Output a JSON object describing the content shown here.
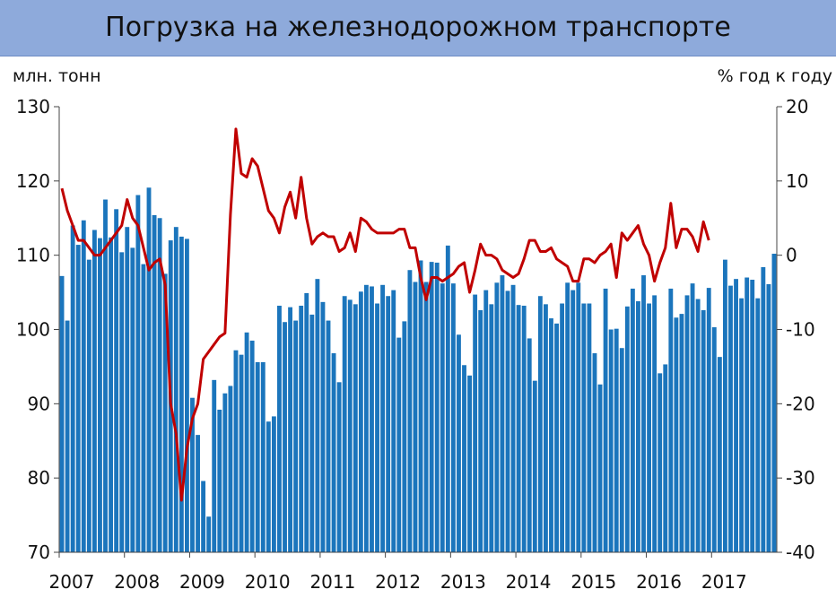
{
  "header": {
    "title": "Погрузка на железнодорожном транспорте"
  },
  "axes": {
    "left_unit": "млн. тонн",
    "right_unit": "% год к году"
  },
  "chart_data": {
    "type": "bar",
    "title": "Погрузка на железнодорожном транспорте",
    "ylabel": "млн. тонн",
    "y2label": "% год к году",
    "ylim": [
      70,
      130
    ],
    "y2lim": [
      -40,
      20
    ],
    "yticks": [
      70,
      80,
      90,
      100,
      110,
      120,
      130
    ],
    "y2ticks": [
      -40,
      -30,
      -20,
      -10,
      0,
      10,
      20
    ],
    "x_start": "2007-01",
    "x_labels": [
      "2007",
      "2008",
      "2009",
      "2010",
      "2011",
      "2012",
      "2013",
      "2014",
      "2015",
      "2016",
      "2017"
    ],
    "grid": false,
    "colors": {
      "bars": "#1b75bc",
      "line": "#c00000",
      "header_bg": "#8eaadb"
    },
    "series": [
      {
        "type": "bar",
        "axis": "left",
        "values": [
          107.2,
          101.2,
          114.0,
          111.4,
          114.7,
          109.4,
          113.4,
          112.3,
          117.5,
          112.4,
          116.2,
          110.4,
          113.8,
          111.0,
          118.1,
          108.8,
          119.1,
          115.4,
          115.0,
          107.5,
          112.0,
          113.8,
          112.5,
          112.2,
          90.8,
          85.8,
          79.6,
          74.8,
          93.2,
          89.2,
          91.4,
          92.4,
          97.2,
          96.6,
          99.6,
          98.5,
          95.6,
          95.6,
          87.6,
          88.3,
          103.2,
          101.0,
          103.0,
          101.2,
          103.2,
          104.9,
          102.0,
          106.8,
          103.7,
          101.2,
          96.8,
          92.9,
          104.5,
          104.0,
          103.4,
          105.1,
          106.0,
          105.8,
          103.5,
          106.0,
          104.5,
          105.3,
          98.9,
          101.1,
          108.0,
          106.4,
          109.3,
          106.4,
          109.1,
          109.0,
          106.2,
          111.3,
          106.2,
          99.3,
          95.2,
          93.8,
          104.7,
          102.6,
          105.3,
          103.4,
          106.3,
          107.3,
          105.2,
          106.0,
          103.3,
          103.2,
          98.8,
          93.1,
          104.5,
          103.4,
          101.5,
          100.8,
          103.5,
          106.3,
          105.3,
          106.3,
          103.5,
          103.5,
          96.8,
          92.6,
          105.5,
          100.0,
          100.1,
          97.5,
          103.1,
          105.5,
          103.8,
          107.3,
          103.5,
          104.6,
          94.1,
          95.3,
          105.5,
          101.6,
          102.1,
          104.6,
          106.2,
          104.1,
          102.6,
          105.6,
          100.3,
          96.3,
          109.4,
          105.9,
          106.8,
          104.2,
          107.0,
          106.7,
          104.2,
          108.4,
          106.1,
          110.2
        ]
      },
      {
        "type": "line",
        "axis": "right",
        "values": [
          9.0,
          6.0,
          4.0,
          2.0,
          2.0,
          1.0,
          0.0,
          0.0,
          1.0,
          2.0,
          3.0,
          4.0,
          7.5,
          5.0,
          4.0,
          1.0,
          -2.0,
          -1.0,
          -0.5,
          -4.0,
          -20.0,
          -24.0,
          -33.0,
          -26.0,
          -22.0,
          -20.0,
          -14.0,
          -13.0,
          -12.0,
          -11.0,
          -10.5,
          5.5,
          17.0,
          11.0,
          10.5,
          13.0,
          12.0,
          9.0,
          6.0,
          5.0,
          3.0,
          6.5,
          8.5,
          5.0,
          10.5,
          5.0,
          1.5,
          2.5,
          3.0,
          2.5,
          2.5,
          0.5,
          1.0,
          3.0,
          0.5,
          5.0,
          4.5,
          3.5,
          3.0,
          3.0,
          3.0,
          3.0,
          3.5,
          3.5,
          1.0,
          1.0,
          -3.0,
          -6.0,
          -3.0,
          -3.0,
          -3.5,
          -3.0,
          -2.5,
          -1.5,
          -1.0,
          -5.0,
          -2.0,
          1.5,
          0.0,
          0.0,
          -0.5,
          -2.0,
          -2.5,
          -3.0,
          -2.5,
          -0.5,
          2.0,
          2.0,
          0.5,
          0.5,
          1.0,
          -0.5,
          -1.0,
          -1.5,
          -3.5,
          -3.5,
          -0.5,
          -0.5,
          -1.0,
          0.0,
          0.5,
          1.5,
          -3.0,
          3.0,
          2.0,
          3.0,
          4.0,
          1.5,
          0.0,
          -3.5,
          -1.0,
          1.0,
          7.0,
          1.0,
          3.5,
          3.5,
          2.5,
          0.5,
          4.5,
          2.0
        ]
      }
    ]
  }
}
